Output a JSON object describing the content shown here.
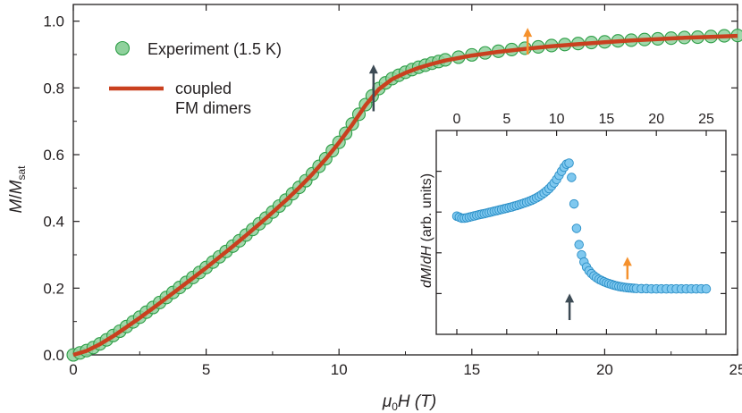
{
  "chart_data": {
    "type": "scatter",
    "main": {
      "xlabel_main": "μ",
      "xlabel_sub": "0",
      "xlabel_rest": "H (T)",
      "ylabel_main": "M",
      "ylabel_slash": "/",
      "ylabel_main2": "M",
      "ylabel_sub": "sat",
      "xlim": [
        0,
        25
      ],
      "ylim": [
        0,
        1.05
      ],
      "x_ticks": [
        "0",
        "5",
        "10",
        "15",
        "20",
        "25"
      ],
      "y_ticks": [
        "0.0",
        "0.2",
        "0.4",
        "0.6",
        "0.8",
        "1.0"
      ],
      "grid": false,
      "legend_position": "top-left",
      "series": [
        {
          "name": "Experiment (1.5 K)",
          "kind": "markers",
          "color": "#2e9e47",
          "fill": "#8fd19c",
          "points": [
            [
              0,
              0.0
            ],
            [
              0.25,
              0.006
            ],
            [
              0.5,
              0.013
            ],
            [
              0.75,
              0.022
            ],
            [
              1,
              0.033
            ],
            [
              1.25,
              0.045
            ],
            [
              1.5,
              0.058
            ],
            [
              1.75,
              0.071
            ],
            [
              2,
              0.085
            ],
            [
              2.25,
              0.099
            ],
            [
              2.5,
              0.113
            ],
            [
              2.75,
              0.128
            ],
            [
              3,
              0.142
            ],
            [
              3.25,
              0.157
            ],
            [
              3.5,
              0.172
            ],
            [
              3.75,
              0.187
            ],
            [
              4,
              0.202
            ],
            [
              4.25,
              0.217
            ],
            [
              4.5,
              0.232
            ],
            [
              4.75,
              0.247
            ],
            [
              5,
              0.262
            ],
            [
              5.25,
              0.278
            ],
            [
              5.5,
              0.294
            ],
            [
              5.75,
              0.31
            ],
            [
              6,
              0.326
            ],
            [
              6.25,
              0.342
            ],
            [
              6.5,
              0.359
            ],
            [
              6.75,
              0.376
            ],
            [
              7,
              0.393
            ],
            [
              7.25,
              0.41
            ],
            [
              7.5,
              0.428
            ],
            [
              7.75,
              0.446
            ],
            [
              8,
              0.464
            ],
            [
              8.25,
              0.483
            ],
            [
              8.5,
              0.502
            ],
            [
              8.75,
              0.522
            ],
            [
              9,
              0.543
            ],
            [
              9.25,
              0.565
            ],
            [
              9.5,
              0.588
            ],
            [
              9.75,
              0.612
            ],
            [
              10,
              0.637
            ],
            [
              10.25,
              0.664
            ],
            [
              10.5,
              0.692
            ],
            [
              10.75,
              0.721
            ],
            [
              11,
              0.75
            ],
            [
              11.25,
              0.776
            ],
            [
              11.5,
              0.798
            ],
            [
              11.75,
              0.815
            ],
            [
              12,
              0.828
            ],
            [
              12.25,
              0.838
            ],
            [
              12.5,
              0.847
            ],
            [
              12.75,
              0.855
            ],
            [
              13,
              0.862
            ],
            [
              13.25,
              0.868
            ],
            [
              13.5,
              0.874
            ],
            [
              13.75,
              0.879
            ],
            [
              14,
              0.884
            ],
            [
              14.5,
              0.892
            ],
            [
              15,
              0.899
            ],
            [
              15.5,
              0.905
            ],
            [
              16,
              0.91
            ],
            [
              16.5,
              0.915
            ],
            [
              17,
              0.919
            ],
            [
              17.5,
              0.923
            ],
            [
              18,
              0.927
            ],
            [
              18.5,
              0.93
            ],
            [
              19,
              0.933
            ],
            [
              19.5,
              0.936
            ],
            [
              20,
              0.938
            ],
            [
              20.5,
              0.941
            ],
            [
              21,
              0.943
            ],
            [
              21.5,
              0.945
            ],
            [
              22,
              0.947
            ],
            [
              22.5,
              0.949
            ],
            [
              23,
              0.951
            ],
            [
              23.5,
              0.952
            ],
            [
              24,
              0.954
            ],
            [
              24.5,
              0.956
            ],
            [
              25,
              0.957
            ]
          ]
        },
        {
          "name": "coupled\nFM dimers",
          "kind": "line",
          "color": "#c9401f",
          "points": [
            [
              0,
              0.0
            ],
            [
              0.5,
              0.012
            ],
            [
              1,
              0.032
            ],
            [
              1.5,
              0.056
            ],
            [
              2,
              0.083
            ],
            [
              2.5,
              0.111
            ],
            [
              3,
              0.14
            ],
            [
              3.5,
              0.17
            ],
            [
              4,
              0.2
            ],
            [
              4.5,
              0.23
            ],
            [
              5,
              0.261
            ],
            [
              5.5,
              0.293
            ],
            [
              6,
              0.325
            ],
            [
              6.5,
              0.358
            ],
            [
              7,
              0.392
            ],
            [
              7.5,
              0.427
            ],
            [
              8,
              0.463
            ],
            [
              8.5,
              0.501
            ],
            [
              9,
              0.542
            ],
            [
              9.5,
              0.587
            ],
            [
              10,
              0.636
            ],
            [
              10.5,
              0.69
            ],
            [
              11,
              0.748
            ],
            [
              11.5,
              0.796
            ],
            [
              12,
              0.826
            ],
            [
              12.5,
              0.845
            ],
            [
              13,
              0.86
            ],
            [
              13.5,
              0.872
            ],
            [
              14,
              0.882
            ],
            [
              15,
              0.897
            ],
            [
              16,
              0.908
            ],
            [
              17,
              0.917
            ],
            [
              18,
              0.925
            ],
            [
              19,
              0.931
            ],
            [
              20,
              0.937
            ],
            [
              21,
              0.942
            ],
            [
              22,
              0.946
            ],
            [
              23,
              0.95
            ],
            [
              24,
              0.953
            ],
            [
              25,
              0.956
            ]
          ]
        }
      ],
      "arrows": [
        {
          "x": 11.3,
          "y_from": 0.73,
          "y_to": 0.87,
          "color": "#3d4b55"
        },
        {
          "x": 17.1,
          "y_from": 0.9,
          "y_to": 0.98,
          "color": "#f5912d"
        }
      ]
    },
    "inset": {
      "ylabel_parts": [
        "dM",
        "/",
        "dH",
        " (arb. units)"
      ],
      "xlim": [
        0,
        25
      ],
      "x_ticks": [
        "0",
        "5",
        "10",
        "15",
        "20",
        "25"
      ],
      "yticks_labeled": false,
      "series": [
        {
          "kind": "markers",
          "color": "#2a8fc7",
          "fill": "#7fc8ef",
          "points": [
            [
              0,
              0.58
            ],
            [
              0.25,
              0.575
            ],
            [
              0.5,
              0.57
            ],
            [
              0.75,
              0.57
            ],
            [
              1,
              0.572
            ],
            [
              1.25,
              0.575
            ],
            [
              1.5,
              0.578
            ],
            [
              1.75,
              0.581
            ],
            [
              2,
              0.584
            ],
            [
              2.25,
              0.587
            ],
            [
              2.5,
              0.59
            ],
            [
              2.75,
              0.592
            ],
            [
              3,
              0.595
            ],
            [
              3.25,
              0.598
            ],
            [
              3.5,
              0.601
            ],
            [
              3.75,
              0.604
            ],
            [
              4,
              0.607
            ],
            [
              4.25,
              0.61
            ],
            [
              4.5,
              0.613
            ],
            [
              4.75,
              0.616
            ],
            [
              5,
              0.619
            ],
            [
              5.25,
              0.622
            ],
            [
              5.5,
              0.625
            ],
            [
              5.75,
              0.629
            ],
            [
              6,
              0.632
            ],
            [
              6.25,
              0.636
            ],
            [
              6.5,
              0.64
            ],
            [
              6.75,
              0.644
            ],
            [
              7,
              0.648
            ],
            [
              7.25,
              0.653
            ],
            [
              7.5,
              0.658
            ],
            [
              7.75,
              0.664
            ],
            [
              8,
              0.67
            ],
            [
              8.25,
              0.677
            ],
            [
              8.5,
              0.685
            ],
            [
              8.75,
              0.694
            ],
            [
              9,
              0.704
            ],
            [
              9.25,
              0.715
            ],
            [
              9.5,
              0.728
            ],
            [
              9.75,
              0.743
            ],
            [
              10,
              0.76
            ],
            [
              10.25,
              0.78
            ],
            [
              10.5,
              0.8
            ],
            [
              10.75,
              0.82
            ],
            [
              11,
              0.835
            ],
            [
              11.25,
              0.84
            ],
            [
              11.5,
              0.77
            ],
            [
              11.75,
              0.64
            ],
            [
              12,
              0.52
            ],
            [
              12.25,
              0.44
            ],
            [
              12.5,
              0.39
            ],
            [
              12.75,
              0.355
            ],
            [
              13,
              0.33
            ],
            [
              13.25,
              0.312
            ],
            [
              13.5,
              0.298
            ],
            [
              13.75,
              0.287
            ],
            [
              14,
              0.278
            ],
            [
              14.25,
              0.27
            ],
            [
              14.5,
              0.264
            ],
            [
              14.75,
              0.258
            ],
            [
              15,
              0.253
            ],
            [
              15.25,
              0.249
            ],
            [
              15.5,
              0.245
            ],
            [
              15.75,
              0.241
            ],
            [
              16,
              0.238
            ],
            [
              16.25,
              0.235
            ],
            [
              16.5,
              0.233
            ],
            [
              16.75,
              0.231
            ],
            [
              17,
              0.229
            ],
            [
              17.25,
              0.228
            ],
            [
              17.5,
              0.227
            ],
            [
              17.75,
              0.226
            ],
            [
              18,
              0.225
            ],
            [
              18.5,
              0.224
            ],
            [
              19,
              0.224
            ],
            [
              19.5,
              0.223
            ],
            [
              20,
              0.223
            ],
            [
              20.5,
              0.223
            ],
            [
              21,
              0.223
            ],
            [
              21.5,
              0.223
            ],
            [
              22,
              0.223
            ],
            [
              22.5,
              0.223
            ],
            [
              23,
              0.223
            ],
            [
              23.5,
              0.223
            ],
            [
              24,
              0.223
            ],
            [
              24.5,
              0.223
            ],
            [
              25,
              0.223
            ]
          ]
        }
      ],
      "arrows": [
        {
          "x": 11.3,
          "y_from": 0.07,
          "y_to": 0.2,
          "color": "#3d4b55"
        },
        {
          "x": 17.1,
          "y_from": 0.27,
          "y_to": 0.38,
          "color": "#f5912d"
        }
      ]
    }
  }
}
